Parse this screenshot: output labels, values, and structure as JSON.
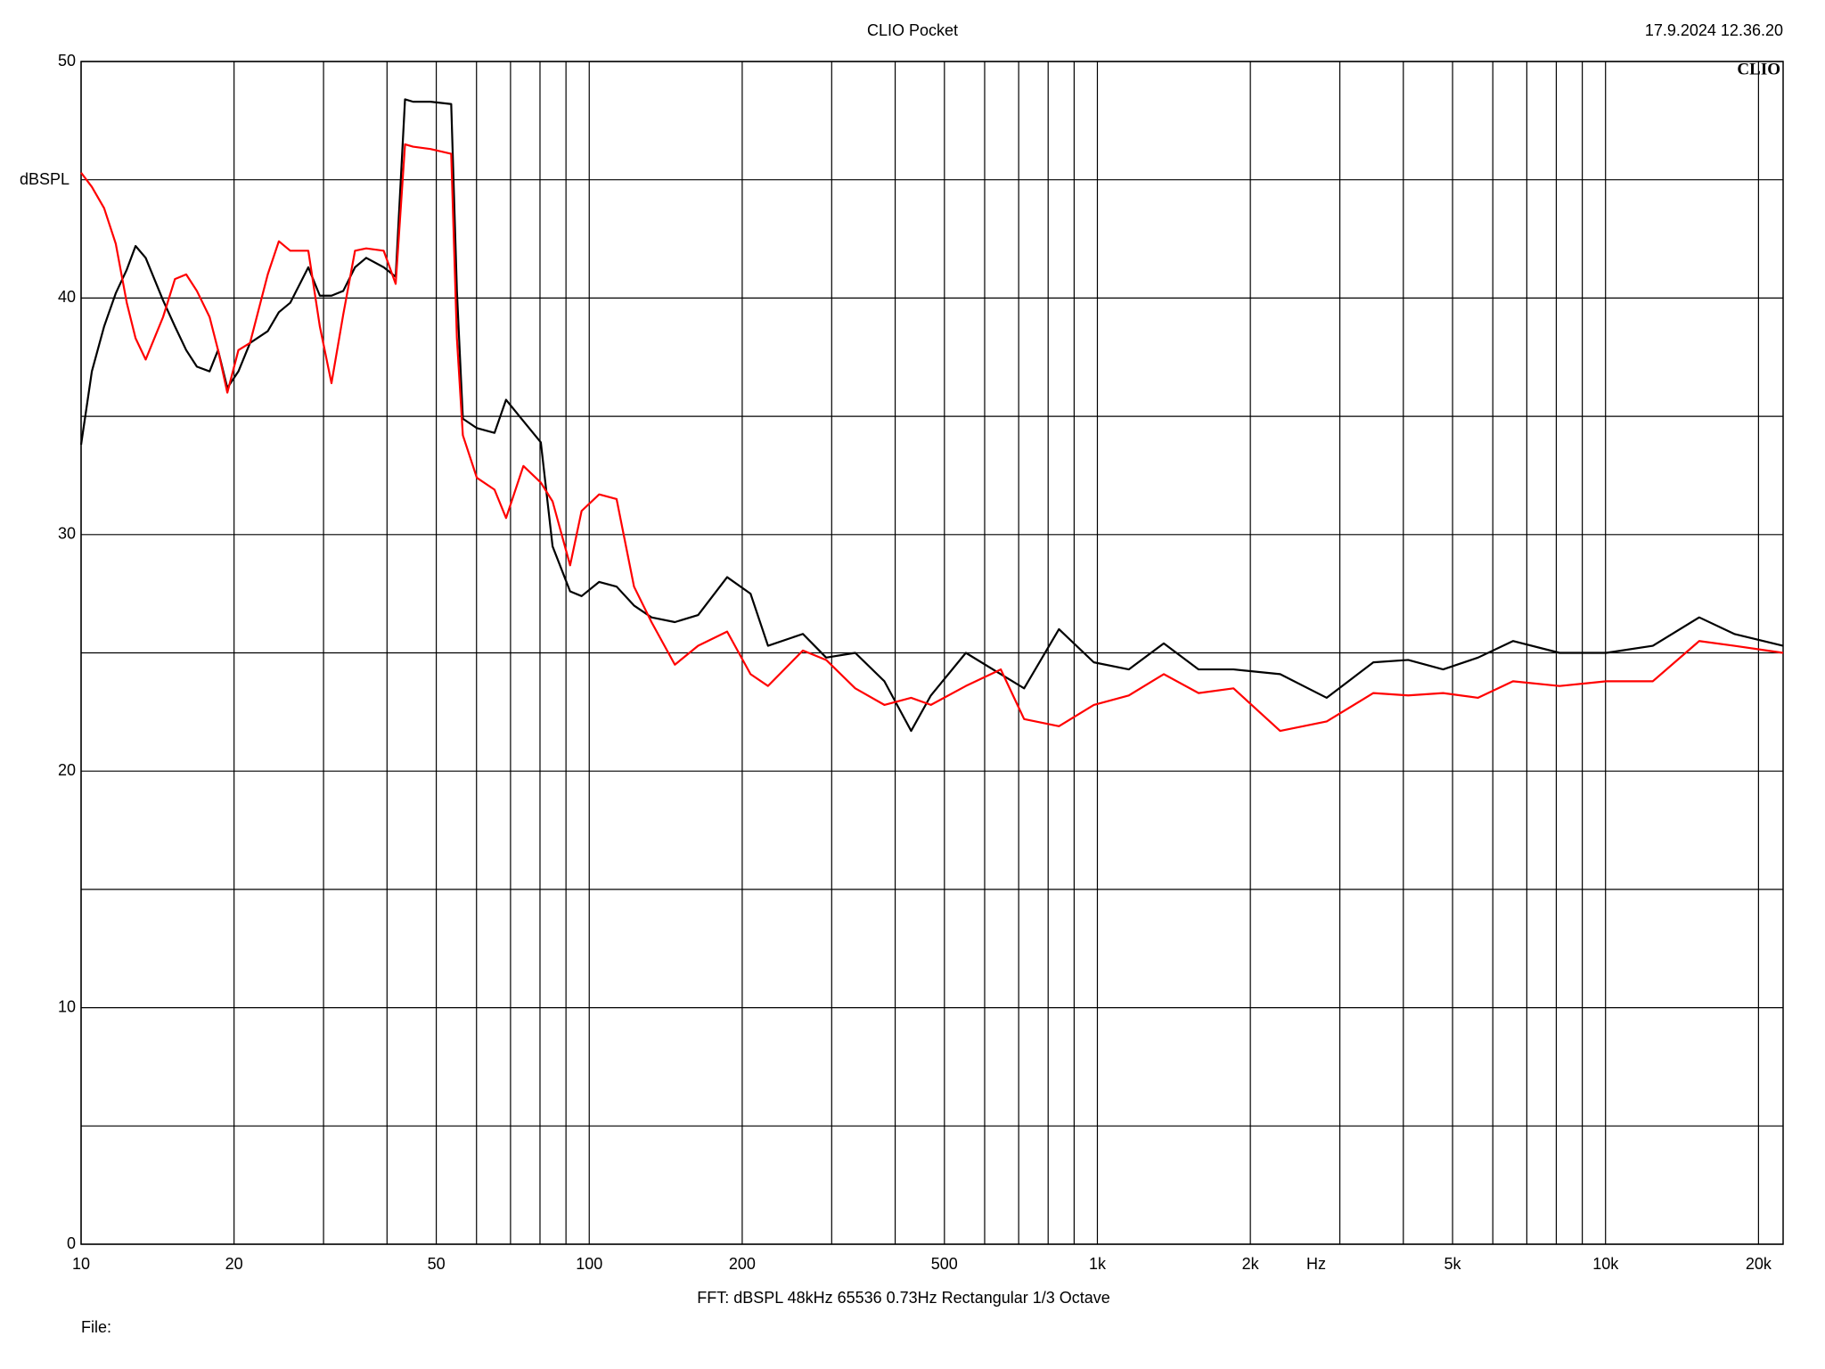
{
  "chart_data": {
    "type": "line",
    "title": "CLIO Pocket",
    "timestamp": "17.9.2024 12.36.20",
    "logo": "CLIO",
    "ylabel": "dBSPL",
    "xlabel": "Hz",
    "footer": "FFT:  dBSPL  48kHz  65536  0.73Hz  Rectangular  1/3 Octave",
    "file_label": "File:",
    "xscale": "log",
    "grid": true,
    "xlim": [
      10,
      22360
    ],
    "ylim": [
      0,
      50
    ],
    "xticks": [
      10,
      20,
      50,
      100,
      200,
      500,
      {
        "value": 1000,
        "label": "1k"
      },
      {
        "value": 2000,
        "label": "2k"
      },
      {
        "value": 5000,
        "label": "5k"
      },
      {
        "value": 10000,
        "label": "10k"
      },
      {
        "value": 20000,
        "label": "20k"
      }
    ],
    "xminor": [
      30,
      40,
      60,
      70,
      80,
      90,
      300,
      400,
      600,
      700,
      800,
      900,
      3000,
      4000,
      6000,
      7000,
      8000,
      9000
    ],
    "yticks": [
      0,
      10,
      20,
      30,
      40,
      50
    ],
    "yminor": [
      5,
      15,
      25,
      35,
      45
    ],
    "x": [
      10,
      10.5,
      11.1,
      11.7,
      12.3,
      12.8,
      13.4,
      14.5,
      15.3,
      16.1,
      16.9,
      17.9,
      18.6,
      19.4,
      20.4,
      21.5,
      23.3,
      24.5,
      25.8,
      28.0,
      29.5,
      31.1,
      32.8,
      34.6,
      36.4,
      39.4,
      41.6,
      43.4,
      45.0,
      48.7,
      53.5,
      54.9,
      56.4,
      60.1,
      65.1,
      68.6,
      74.2,
      80.3,
      84.7,
      91.7,
      96.6,
      104.6,
      113.2,
      122.5,
      132.6,
      147.4,
      163.8,
      186.8,
      207.7,
      224.8,
      263.3,
      292.6,
      333.8,
      380.9,
      430,
      470.3,
      551,
      645.5,
      717.5,
      840.2,
      984,
      1153,
      1351,
      1582,
      1853,
      2289,
      2827,
      3492,
      4089,
      4790,
      5612,
      6575,
      8121,
      10030,
      12390,
      15290,
      17920,
      22360
    ],
    "series": [
      {
        "name": "Black trace",
        "color": "#000000",
        "values": [
          33.8,
          36.9,
          38.8,
          40.2,
          41.2,
          42.2,
          41.7,
          39.9,
          38.8,
          37.8,
          37.1,
          36.9,
          37.8,
          36.2,
          36.9,
          38.1,
          38.6,
          39.4,
          39.8,
          41.3,
          40.1,
          40.1,
          40.3,
          41.3,
          41.7,
          41.3,
          40.9,
          48.4,
          48.3,
          48.3,
          48.2,
          40.3,
          34.9,
          34.5,
          34.3,
          35.7,
          34.8,
          33.9,
          29.5,
          27.6,
          27.4,
          28.0,
          27.8,
          27.0,
          26.5,
          26.3,
          26.6,
          28.2,
          27.5,
          25.3,
          25.8,
          24.8,
          25.0,
          23.8,
          21.7,
          23.2,
          25.0,
          24.1,
          23.5,
          26.0,
          24.6,
          24.3,
          25.4,
          24.3,
          24.3,
          24.1,
          23.1,
          24.6,
          24.7,
          24.3,
          24.8,
          25.5,
          25.0,
          25.0,
          25.3,
          26.5,
          25.8,
          25.3
        ]
      },
      {
        "name": "Red trace",
        "color": "#ff0000",
        "values": [
          45.3,
          44.7,
          43.8,
          42.3,
          39.8,
          38.3,
          37.4,
          39.2,
          40.8,
          41.0,
          40.3,
          39.2,
          37.8,
          36.0,
          37.8,
          38.1,
          41.0,
          42.4,
          42.0,
          42.0,
          38.8,
          36.4,
          39.3,
          42.0,
          42.1,
          42.0,
          40.6,
          46.5,
          46.4,
          46.3,
          46.1,
          38.3,
          34.2,
          32.4,
          31.9,
          30.7,
          32.9,
          32.2,
          31.4,
          28.7,
          31.0,
          31.7,
          31.5,
          27.8,
          26.3,
          24.5,
          25.3,
          25.9,
          24.1,
          23.6,
          25.1,
          24.7,
          23.5,
          22.8,
          23.1,
          22.8,
          23.6,
          24.3,
          22.2,
          21.9,
          22.8,
          23.2,
          24.1,
          23.3,
          23.5,
          21.7,
          22.1,
          23.3,
          23.2,
          23.3,
          23.1,
          23.8,
          23.6,
          23.8,
          23.8,
          25.5,
          25.3,
          25.0
        ]
      }
    ]
  }
}
